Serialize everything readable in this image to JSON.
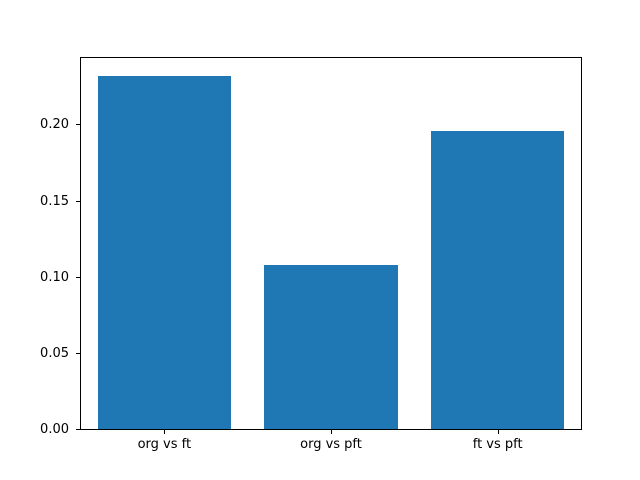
{
  "chart_data": {
    "type": "bar",
    "categories": [
      "org vs ft",
      "org vs pft",
      "ft vs pft"
    ],
    "values": [
      0.232,
      0.108,
      0.196
    ],
    "title": "",
    "xlabel": "",
    "ylabel": "",
    "ylim": [
      0,
      0.2436
    ],
    "ytick_values": [
      0.0,
      0.05,
      0.1,
      0.15,
      0.2
    ],
    "ytick_labels": [
      "0.00",
      "0.05",
      "0.10",
      "0.15",
      "0.20"
    ],
    "bar_color": "#1f77b4",
    "bar_width_fraction": 0.8,
    "grid": false,
    "legend": null,
    "background_color": "#ffffff",
    "axis_color": "#000000"
  }
}
